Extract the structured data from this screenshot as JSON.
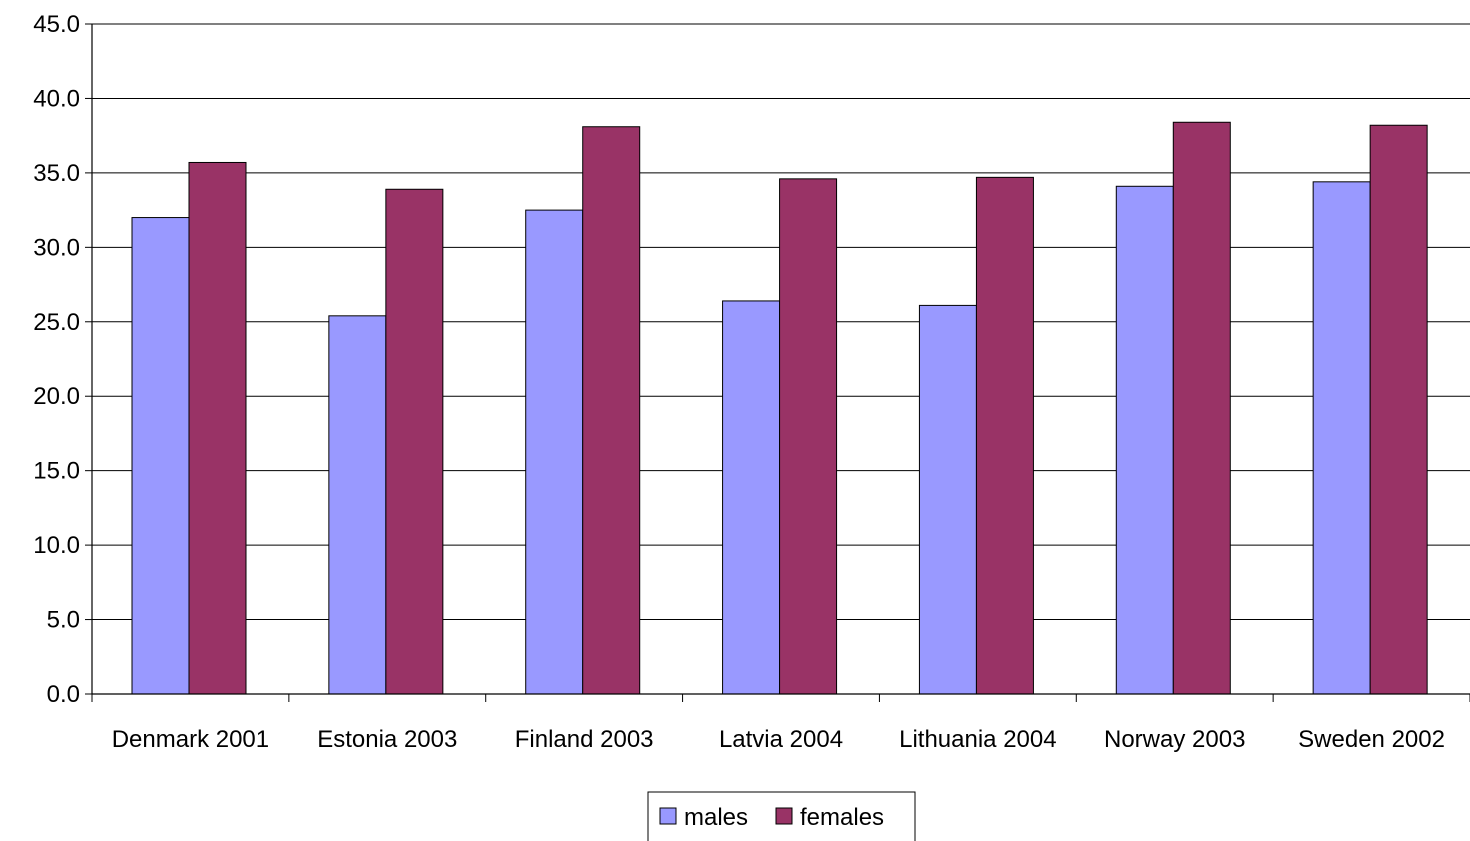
{
  "chart_data": {
    "type": "bar",
    "categories": [
      "Denmark 2001",
      "Estonia 2003",
      "Finland 2003",
      "Latvia 2004",
      "Lithuania 2004",
      "Norway 2003",
      "Sweden 2002"
    ],
    "series": [
      {
        "name": "males",
        "color": "#9999ff",
        "values": [
          32.0,
          25.4,
          32.5,
          26.4,
          26.1,
          34.1,
          34.4
        ]
      },
      {
        "name": "females",
        "color": "#993366",
        "values": [
          35.7,
          33.9,
          38.1,
          34.6,
          34.7,
          38.4,
          38.2
        ]
      }
    ],
    "ylim": [
      0,
      45
    ],
    "yticks": [
      "0.0",
      "5.0",
      "10.0",
      "15.0",
      "20.0",
      "25.0",
      "30.0",
      "35.0",
      "40.0",
      "45.0"
    ],
    "grid": true,
    "legend_position": "bottom-center"
  }
}
